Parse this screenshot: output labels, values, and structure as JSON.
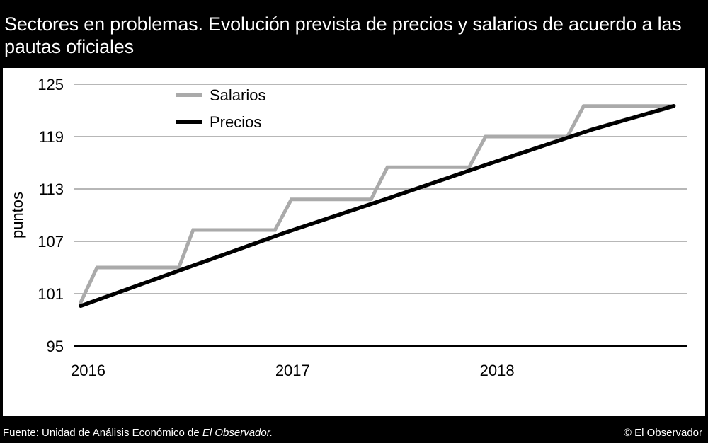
{
  "header": {
    "title": "Sectores en problemas. Evolución prevista de precios y salarios de acuerdo a las pautas oficiales"
  },
  "footer": {
    "source_prefix": "Fuente: Unidad de Análisis Económico de ",
    "source_outlet": "El Observador.",
    "credit": "© El Observador"
  },
  "colors": {
    "salarios": "#aaaaaa",
    "precios": "#000000",
    "grid": "#8c8c8c",
    "text": "#000000"
  },
  "chart_data": {
    "type": "line",
    "title": "Sectores en problemas. Evolución prevista de precios y salarios de acuerdo a las pautas oficiales",
    "xlabel": "",
    "ylabel": "puntos",
    "xlim": [
      2016.0,
      2018.95
    ],
    "ylim": [
      95,
      125
    ],
    "yticks": [
      95,
      101,
      107,
      113,
      119,
      125
    ],
    "xticks": [
      2016,
      2017,
      2018
    ],
    "xtick_labels": [
      "2016",
      "2017",
      "2018"
    ],
    "grid": true,
    "legend_position": "top-left",
    "series": [
      {
        "name": "Salarios",
        "color": "#aaaaaa",
        "x": [
          2016.0,
          2016.08,
          2016.48,
          2016.55,
          2016.95,
          2017.03,
          2017.42,
          2017.5,
          2017.9,
          2017.98,
          2018.38,
          2018.46,
          2018.9
        ],
        "y": [
          100.0,
          104.0,
          104.0,
          108.3,
          108.3,
          111.8,
          111.8,
          115.5,
          115.5,
          119.0,
          119.0,
          122.5,
          122.5
        ]
      },
      {
        "name": "Precios",
        "color": "#000000",
        "x": [
          2016.0,
          2016.5,
          2017.0,
          2017.5,
          2018.0,
          2018.5,
          2018.9
        ],
        "y": [
          99.6,
          103.8,
          108.0,
          111.9,
          115.9,
          119.8,
          122.5
        ]
      }
    ]
  }
}
